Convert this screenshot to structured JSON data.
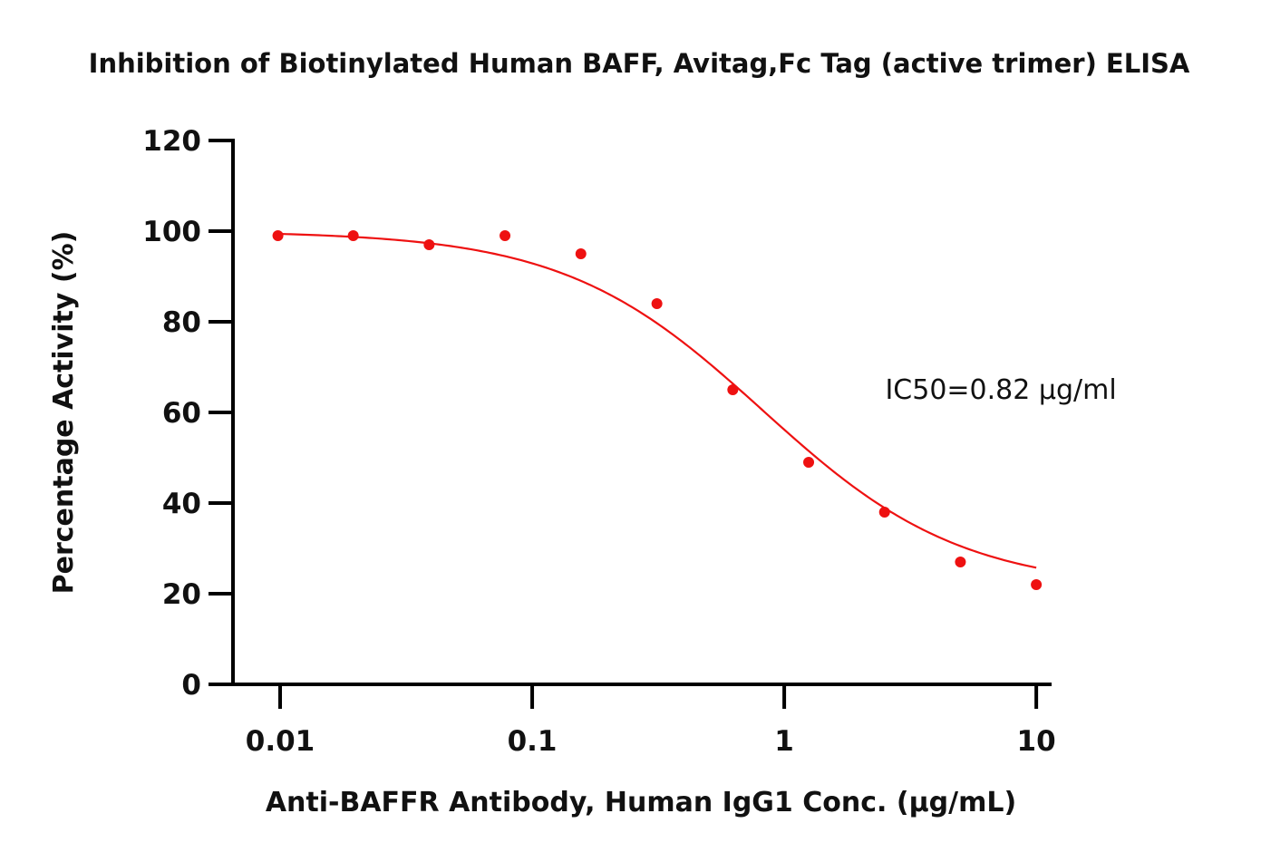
{
  "chart_data": {
    "type": "scatter",
    "title": "Inhibition of Biotinylated Human BAFF, Avitag,Fc Tag (active trimer) ELISA",
    "xlabel": "Anti-BAFFR Antibody, Human IgG1 Conc. (μg/mL)",
    "ylabel": "Percentage Activity (%)",
    "xscale": "log",
    "xlim": [
      0.0065,
      11.5
    ],
    "ylim": [
      0,
      120
    ],
    "x_ticks": [
      0.01,
      0.1,
      1,
      10
    ],
    "x_tick_labels": [
      "0.01",
      "0.1",
      "1",
      "10"
    ],
    "y_ticks": [
      0,
      20,
      40,
      60,
      80,
      100,
      120
    ],
    "y_tick_labels": [
      "0",
      "20",
      "40",
      "60",
      "80",
      "100",
      "120"
    ],
    "grid": false,
    "series": [
      {
        "marker_color": "#ee1111",
        "x": [
          0.0098,
          0.0195,
          0.039,
          0.078,
          0.156,
          0.3125,
          0.625,
          1.25,
          2.5,
          5,
          10
        ],
        "y": [
          99,
          99,
          97,
          99,
          95,
          84,
          65,
          49,
          38,
          27,
          22
        ]
      }
    ],
    "fit_curve": {
      "model": "4PL",
      "color": "#ee1111",
      "top": 100,
      "bottom": 21,
      "ic50": 0.82,
      "hill": 1.1,
      "x_range": [
        0.0098,
        10
      ]
    },
    "annotations": [
      {
        "text": "IC50=0.82 μg/ml",
        "x": 2.6,
        "y": 65
      }
    ]
  }
}
